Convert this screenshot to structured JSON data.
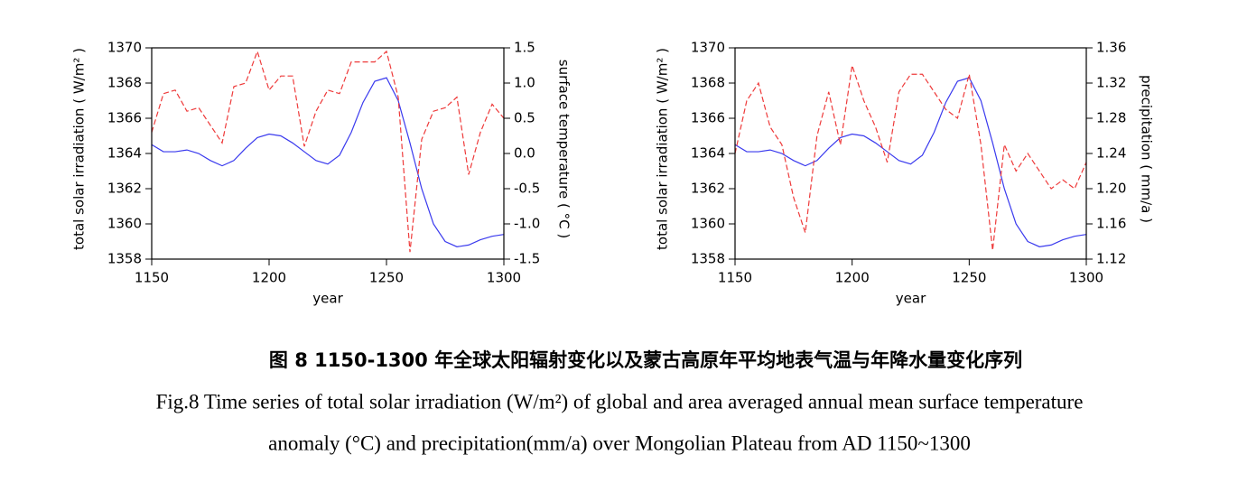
{
  "chart_data": [
    {
      "type": "line",
      "x": [
        1150,
        1155,
        1160,
        1165,
        1170,
        1175,
        1180,
        1185,
        1190,
        1195,
        1200,
        1205,
        1210,
        1215,
        1220,
        1225,
        1230,
        1235,
        1240,
        1245,
        1250,
        1255,
        1260,
        1265,
        1270,
        1275,
        1280,
        1285,
        1290,
        1295,
        1300
      ],
      "xlabel": "year",
      "ylabel": "total solar irradiation ( W/m² )",
      "y2label": "surface temperature ( °C )",
      "xlim": [
        1150,
        1300
      ],
      "xticks": [
        1150,
        1200,
        1250,
        1300
      ],
      "ylim": [
        1358,
        1370
      ],
      "yticks": [
        1358,
        1360,
        1362,
        1364,
        1366,
        1368,
        1370
      ],
      "y2lim": [
        -1.5,
        1.5
      ],
      "y2ticks": [
        -1.5,
        {
          "value": -1,
          "label": "-1.0"
        },
        -0.5,
        {
          "value": 0,
          "label": "0.0"
        },
        0.5,
        {
          "value": 1,
          "label": "1.0"
        },
        1.5
      ],
      "series": [
        {
          "color": "#3a3aee",
          "linestyle": "solid",
          "axis": "y",
          "values": [
            1364.5,
            1364.1,
            1364.1,
            1364.2,
            1364.0,
            1363.6,
            1363.3,
            1363.6,
            1364.3,
            1364.9,
            1365.1,
            1365.0,
            1364.6,
            1364.1,
            1363.6,
            1363.4,
            1363.9,
            1365.2,
            1366.9,
            1368.1,
            1368.3,
            1367.0,
            1364.6,
            1362.0,
            1360.0,
            1359.0,
            1358.7,
            1358.8,
            1359.1,
            1359.3,
            1359.4
          ]
        },
        {
          "color": "#ee3a3a",
          "linestyle": "dashed",
          "axis": "y2",
          "values": [
            0.3,
            0.85,
            0.9,
            0.6,
            0.65,
            0.4,
            0.15,
            0.95,
            1.0,
            1.45,
            0.9,
            1.1,
            1.1,
            0.1,
            0.6,
            0.9,
            0.85,
            1.3,
            1.3,
            1.3,
            1.45,
            0.8,
            -1.4,
            0.2,
            0.6,
            0.65,
            0.8,
            -0.3,
            0.3,
            0.7,
            0.5
          ]
        }
      ]
    },
    {
      "type": "line",
      "x": [
        1150,
        1155,
        1160,
        1165,
        1170,
        1175,
        1180,
        1185,
        1190,
        1195,
        1200,
        1205,
        1210,
        1215,
        1220,
        1225,
        1230,
        1235,
        1240,
        1245,
        1250,
        1255,
        1260,
        1265,
        1270,
        1275,
        1280,
        1285,
        1290,
        1295,
        1300
      ],
      "xlabel": "year",
      "ylabel": "total solar irradiation ( W/m² )",
      "y2label": "precipitation ( mm/a )",
      "xlim": [
        1150,
        1300
      ],
      "xticks": [
        1150,
        1200,
        1250,
        1300
      ],
      "ylim": [
        1358,
        1370
      ],
      "yticks": [
        1358,
        1360,
        1362,
        1364,
        1366,
        1368,
        1370
      ],
      "y2lim": [
        1.12,
        1.36
      ],
      "y2ticks": [
        1.12,
        1.16,
        {
          "value": 1.2,
          "label": "1.20"
        },
        1.24,
        1.28,
        1.32,
        1.36
      ],
      "series": [
        {
          "color": "#3a3aee",
          "linestyle": "solid",
          "axis": "y",
          "values": [
            1364.5,
            1364.1,
            1364.1,
            1364.2,
            1364.0,
            1363.6,
            1363.3,
            1363.6,
            1364.3,
            1364.9,
            1365.1,
            1365.0,
            1364.6,
            1364.1,
            1363.6,
            1363.4,
            1363.9,
            1365.2,
            1366.9,
            1368.1,
            1368.3,
            1367.0,
            1364.6,
            1362.0,
            1360.0,
            1359.0,
            1358.7,
            1358.8,
            1359.1,
            1359.3,
            1359.4
          ]
        },
        {
          "color": "#ee3a3a",
          "linestyle": "dashed",
          "axis": "y2",
          "values": [
            1.24,
            1.3,
            1.32,
            1.27,
            1.25,
            1.19,
            1.15,
            1.26,
            1.31,
            1.25,
            1.34,
            1.3,
            1.27,
            1.23,
            1.31,
            1.33,
            1.33,
            1.31,
            1.29,
            1.28,
            1.33,
            1.25,
            1.13,
            1.25,
            1.22,
            1.24,
            1.22,
            1.2,
            1.21,
            1.2,
            1.23
          ]
        }
      ]
    }
  ],
  "caption_zh": "图 8 1150-1300 年全球太阳辐射变化以及蒙古高原年平均地表气温与年降水量变化序列",
  "caption_en": [
    "Fig.8 Time series of total solar irradiation (W/m²) of global and area averaged annual mean surface temperature",
    "anomaly (°C) and precipitation(mm/a) over Mongolian Plateau from AD 1150~1300"
  ]
}
